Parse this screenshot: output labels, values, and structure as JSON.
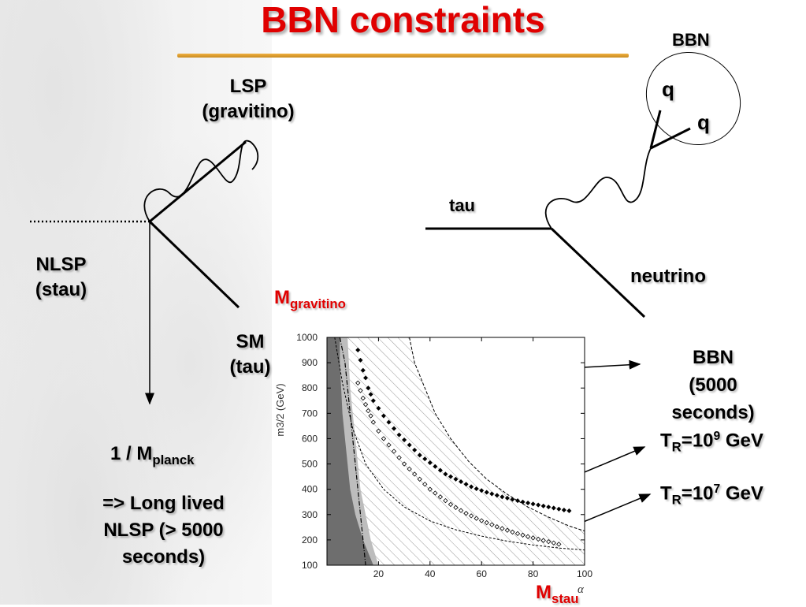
{
  "slide": {
    "title": "BBN constraints",
    "left_diagram": {
      "lsp_line1": "LSP",
      "lsp_line2": "(gravitino)",
      "nlsp_line1": "NLSP",
      "nlsp_line2": "(stau)",
      "sm_line1": "SM",
      "sm_line2": "(tau)",
      "m_gravitino_main": "M",
      "m_gravitino_sub": "gravitino",
      "planck_main": "1 / M",
      "planck_sub": "planck",
      "conclusion_line1": "=> Long lived",
      "conclusion_line2": "NLSP (> 5000",
      "conclusion_line3": "seconds)"
    },
    "right_diagram": {
      "bbn_label": "BBN",
      "quark1": "q",
      "quark2": "q",
      "tau_label": "tau",
      "neutrino_label": "neutrino"
    },
    "annotations": {
      "bbn_line1": "BBN",
      "bbn_line2": "(5000",
      "bbn_line3": "seconds)",
      "tr9_main": "T",
      "tr9_sub": "R",
      "tr9_eq": "=10",
      "tr9_exp": "9",
      "tr9_unit": " GeV",
      "tr7_main": "T",
      "tr7_sub": "R",
      "tr7_eq": "=10",
      "tr7_exp": "7",
      "tr7_unit": " GeV",
      "mstau_main": "M",
      "mstau_sub": "stau"
    }
  },
  "chart_data": {
    "type": "scatter",
    "title": "",
    "xlabel": "α",
    "ylabel": "m3/2 (GeV)",
    "xlim": [
      0,
      100
    ],
    "ylim": [
      100,
      1000
    ],
    "xticks": [
      20,
      40,
      60,
      80,
      100
    ],
    "yticks": [
      100,
      200,
      300,
      400,
      500,
      600,
      700,
      800,
      900,
      1000
    ],
    "bbn_boundary": {
      "x": [
        32,
        34,
        38,
        42,
        48,
        55,
        62,
        70,
        78,
        86,
        94,
        100
      ],
      "y": [
        1000,
        900,
        800,
        700,
        600,
        510,
        440,
        380,
        330,
        290,
        255,
        235
      ]
    },
    "excluded_band_dark": {
      "x_left": [
        0,
        0,
        0,
        0,
        0,
        0,
        0,
        0,
        0,
        0
      ],
      "x_right": [
        5,
        5,
        5.5,
        6,
        7,
        8,
        9,
        11,
        14,
        18
      ],
      "y": [
        1000,
        900,
        800,
        700,
        600,
        500,
        400,
        300,
        200,
        100
      ]
    },
    "excluded_band_light": {
      "x_right": [
        8,
        8.5,
        9,
        10,
        11,
        12,
        13,
        15,
        17,
        20
      ],
      "y": [
        1000,
        900,
        800,
        700,
        600,
        500,
        400,
        300,
        200,
        100
      ]
    },
    "dash_dot_curve": {
      "x": [
        5,
        7,
        8,
        9,
        10,
        11,
        12,
        13,
        14,
        15
      ],
      "y": [
        1000,
        900,
        800,
        700,
        600,
        500,
        400,
        300,
        200,
        100
      ]
    },
    "lower_dotted_curve": {
      "x": [
        3,
        6,
        10,
        15,
        22,
        30,
        40,
        50,
        60,
        70,
        80,
        90,
        100
      ],
      "y": [
        1000,
        820,
        640,
        500,
        400,
        330,
        275,
        240,
        215,
        195,
        180,
        168,
        160
      ]
    },
    "series": [
      {
        "name": "TR=10^9 GeV",
        "marker": "filled-diamond",
        "x": [
          12,
          13,
          14,
          15,
          16,
          17,
          18,
          20,
          22,
          24,
          26,
          28,
          30,
          32,
          34,
          36,
          38,
          40,
          42,
          44,
          46,
          48,
          50,
          52,
          54,
          56,
          58,
          60,
          62,
          64,
          66,
          68,
          70,
          72,
          74,
          76,
          78,
          80,
          82,
          84,
          86,
          88,
          90,
          92,
          94
        ],
        "y": [
          950,
          910,
          870,
          840,
          800,
          775,
          750,
          720,
          690,
          665,
          640,
          615,
          595,
          575,
          555,
          535,
          520,
          505,
          490,
          475,
          460,
          450,
          440,
          430,
          420,
          410,
          402,
          395,
          388,
          382,
          376,
          370,
          365,
          360,
          355,
          350,
          346,
          342,
          338,
          334,
          330,
          326,
          322,
          318,
          315
        ]
      },
      {
        "name": "TR=10^7 GeV",
        "marker": "open-diamond",
        "x": [
          12,
          13,
          14,
          15,
          16,
          17,
          18,
          20,
          22,
          24,
          26,
          28,
          30,
          32,
          34,
          36,
          38,
          40,
          42,
          44,
          46,
          48,
          50,
          52,
          54,
          56,
          58,
          60,
          62,
          64,
          66,
          68,
          70,
          72,
          74,
          76,
          78,
          80,
          82,
          84,
          86,
          88,
          90
        ],
        "y": [
          820,
          790,
          760,
          735,
          710,
          690,
          665,
          630,
          600,
          575,
          550,
          525,
          500,
          480,
          460,
          440,
          420,
          400,
          385,
          370,
          355,
          340,
          328,
          316,
          305,
          295,
          285,
          276,
          268,
          260,
          252,
          245,
          238,
          231,
          225,
          219,
          213,
          208,
          203,
          198,
          193,
          188,
          183
        ]
      }
    ]
  }
}
